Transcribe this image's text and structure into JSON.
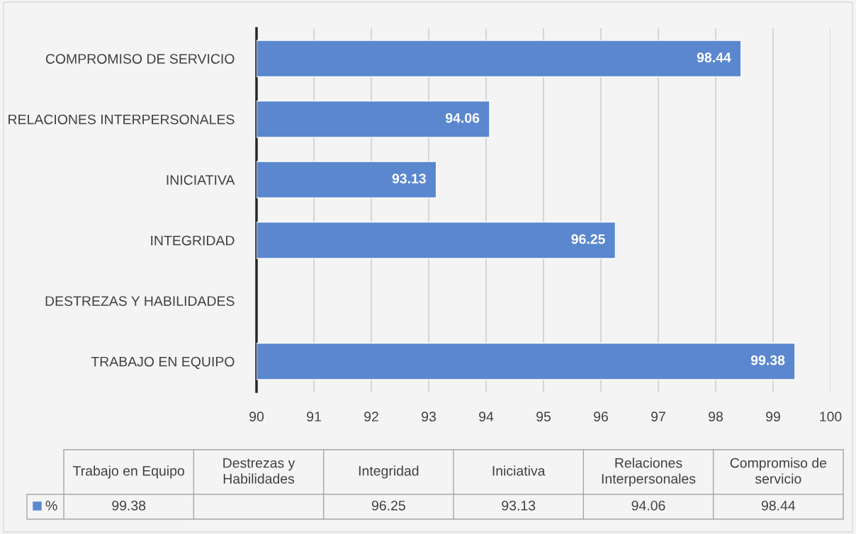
{
  "chart_data": {
    "type": "bar",
    "orientation": "horizontal",
    "categories": [
      "COMPROMISO DE SERVICIO",
      "RELACIONES INTERPERSONALES",
      "INICIATIVA",
      "INTEGRIDAD",
      "DESTREZAS Y HABILIDADES",
      "TRABAJO EN EQUIPO"
    ],
    "series": [
      {
        "name": "%",
        "color": "#5b87cf",
        "values": [
          98.44,
          94.06,
          93.13,
          96.25,
          null,
          99.38
        ]
      }
    ],
    "xlim": [
      90,
      100
    ],
    "xticks": [
      90,
      91,
      92,
      93,
      94,
      95,
      96,
      97,
      98,
      99,
      100
    ],
    "grid": "x",
    "data_labels": true,
    "legend": "bottom",
    "annotations": [
      "Trabajo en Equipo",
      "Destrezas y\nHabilidades",
      "Integridad",
      "Iniciativa",
      "Relaciones\nInterpersonales",
      "Compromiso de\nservicio",
      "99.38",
      "96.25",
      "93.13",
      "94.06",
      "98.44"
    ]
  }
}
